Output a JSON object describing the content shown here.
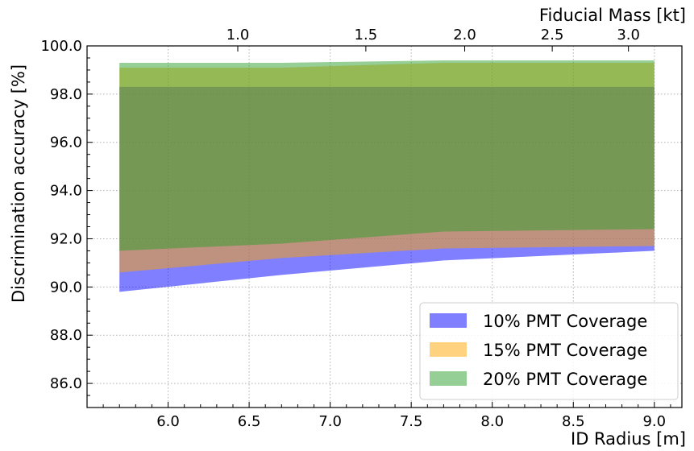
{
  "chart_data": {
    "type": "area",
    "xlabel": "ID Radius [m]",
    "ylabel": "Discrimination accuracy [%]",
    "x2label": "Fiducial Mass [kt]",
    "xlim": [
      5.5,
      9.17
    ],
    "ylim": [
      85.0,
      100.0
    ],
    "xticks": [
      6.0,
      6.5,
      7.0,
      7.5,
      8.0,
      8.5,
      9.0
    ],
    "xtick_labels": [
      "6.0",
      "6.5",
      "7.0",
      "7.5",
      "8.0",
      "8.5",
      "9.0"
    ],
    "yticks": [
      86.0,
      88.0,
      90.0,
      92.0,
      94.0,
      96.0,
      98.0,
      100.0
    ],
    "ytick_labels": [
      "86.0",
      "88.0",
      "90.0",
      "92.0",
      "94.0",
      "96.0",
      "98.0",
      "100.0"
    ],
    "top_ticks": [
      {
        "label": "1.0",
        "radius": 6.43
      },
      {
        "label": "1.5",
        "radius": 7.22
      },
      {
        "label": "2.0",
        "radius": 7.83
      },
      {
        "label": "2.5",
        "radius": 8.37
      },
      {
        "label": "3.0",
        "radius": 8.84
      }
    ],
    "grid": true,
    "legend_position": "lower-right",
    "series": [
      {
        "name": "10% PMT Coverage",
        "color": "#0000ff",
        "x": [
          5.7,
          6.7,
          7.7,
          9.0
        ],
        "lower": [
          89.8,
          90.5,
          91.1,
          91.5
        ],
        "upper": [
          98.3,
          98.3,
          98.3,
          98.3
        ]
      },
      {
        "name": "15% PMT Coverage",
        "color": "#ffa500",
        "x": [
          5.7,
          6.7,
          7.7,
          9.0
        ],
        "lower": [
          90.6,
          91.2,
          91.6,
          91.7
        ],
        "upper": [
          99.1,
          99.1,
          99.3,
          99.3
        ]
      },
      {
        "name": "20% PMT Coverage",
        "color": "#2ca02c",
        "x": [
          5.7,
          6.7,
          7.7,
          9.0
        ],
        "lower": [
          91.5,
          91.8,
          92.3,
          92.4
        ],
        "upper": [
          99.3,
          99.3,
          99.4,
          99.4
        ]
      }
    ]
  }
}
